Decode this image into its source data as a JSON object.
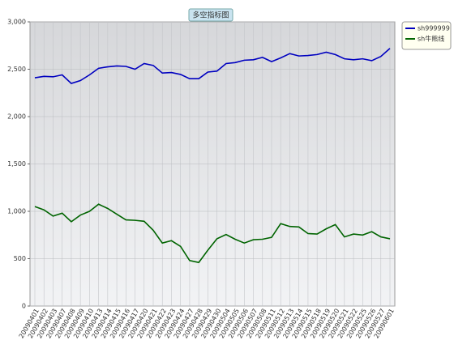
{
  "chart_data": {
    "type": "line",
    "title": "多空指标图",
    "categories": [
      "20090401",
      "20090402",
      "20090403",
      "20090407",
      "20090408",
      "20090409",
      "20090410",
      "20090413",
      "20090414",
      "20090415",
      "20090416",
      "20090417",
      "20090420",
      "20090421",
      "20090422",
      "20090423",
      "20090424",
      "20090427",
      "20090428",
      "20090429",
      "20090430",
      "20090504",
      "20090505",
      "20090506",
      "20090507",
      "20090508",
      "20090511",
      "20090512",
      "20090513",
      "20090514",
      "20090515",
      "20090518",
      "20090519",
      "20090520",
      "20090521",
      "20090522",
      "20090525",
      "20090526",
      "20090527",
      "20090601"
    ],
    "series": [
      {
        "name": "sh999999",
        "color": "#0000c0",
        "values": [
          2410,
          2425,
          2420,
          2440,
          2350,
          2380,
          2440,
          2510,
          2525,
          2535,
          2530,
          2500,
          2560,
          2540,
          2460,
          2465,
          2445,
          2400,
          2400,
          2470,
          2480,
          2560,
          2570,
          2595,
          2600,
          2625,
          2580,
          2620,
          2665,
          2640,
          2645,
          2655,
          2680,
          2655,
          2610,
          2600,
          2610,
          2590,
          2635,
          2720
        ]
      },
      {
        "name": "sh牛熊线",
        "color": "#006400",
        "values": [
          1050,
          1015,
          950,
          980,
          890,
          960,
          1000,
          1075,
          1030,
          970,
          910,
          905,
          895,
          800,
          665,
          690,
          630,
          480,
          460,
          590,
          710,
          755,
          705,
          665,
          700,
          705,
          725,
          870,
          840,
          835,
          765,
          760,
          815,
          860,
          730,
          760,
          750,
          785,
          730,
          710
        ]
      }
    ],
    "ylim": [
      0,
      3000
    ],
    "yticks": [
      0,
      500,
      {
        "value": 1000,
        "label": "1,000"
      },
      {
        "value": 1500,
        "label": "1,500"
      },
      {
        "value": 2000,
        "label": "2,000"
      },
      {
        "value": 2500,
        "label": "2,500"
      },
      {
        "value": 3000,
        "label": "3,000"
      }
    ],
    "grid": true,
    "legend": "top-right"
  }
}
